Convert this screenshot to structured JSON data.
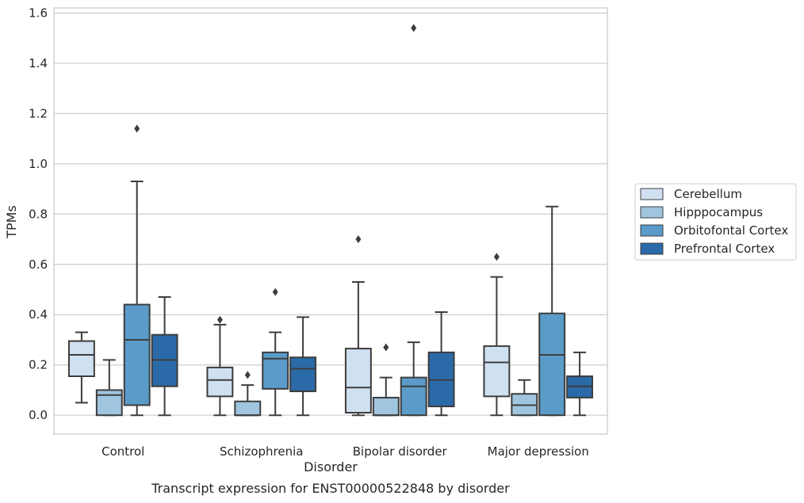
{
  "caption": "Transcript expression for ENST00000522848 by disorder",
  "chart_data": {
    "type": "box",
    "xlabel": "Disorder",
    "ylabel": "TPMs",
    "ylim": [
      -0.075,
      1.62
    ],
    "yticks": [
      0.0,
      0.2,
      0.4,
      0.6,
      0.8,
      1.0,
      1.2,
      1.4,
      1.6
    ],
    "ytick_labels": [
      "0.0",
      "0.2",
      "0.4",
      "0.6",
      "0.8",
      "1.0",
      "1.2",
      "1.4",
      "1.6"
    ],
    "grid": "horizontal",
    "legend_position": "right",
    "categories": [
      "Control",
      "Schizophrenia",
      "Bipolar disorder",
      "Major depression"
    ],
    "series": [
      {
        "name": "Cerebellum",
        "color": "#cfe0f1",
        "boxes": [
          {
            "whisker_low": 0.05,
            "q1": 0.155,
            "median": 0.24,
            "q3": 0.295,
            "whisker_high": 0.33,
            "outliers": []
          },
          {
            "whisker_low": 0.0,
            "q1": 0.075,
            "median": 0.14,
            "q3": 0.19,
            "whisker_high": 0.36,
            "outliers": [
              0.38
            ]
          },
          {
            "whisker_low": 0.0,
            "q1": 0.01,
            "median": 0.11,
            "q3": 0.265,
            "whisker_high": 0.53,
            "outliers": [
              0.7
            ]
          },
          {
            "whisker_low": 0.0,
            "q1": 0.075,
            "median": 0.21,
            "q3": 0.275,
            "whisker_high": 0.55,
            "outliers": [
              0.63
            ]
          }
        ]
      },
      {
        "name": "Hipppocampus",
        "color": "#9fc5df",
        "boxes": [
          {
            "whisker_low": 0.0,
            "q1": 0.0,
            "median": 0.08,
            "q3": 0.1,
            "whisker_high": 0.22,
            "outliers": []
          },
          {
            "whisker_low": 0.0,
            "q1": 0.0,
            "median": 0.0,
            "q3": 0.055,
            "whisker_high": 0.12,
            "outliers": [
              0.16
            ]
          },
          {
            "whisker_low": 0.0,
            "q1": 0.0,
            "median": 0.0,
            "q3": 0.07,
            "whisker_high": 0.15,
            "outliers": [
              0.27
            ]
          },
          {
            "whisker_low": 0.0,
            "q1": 0.0,
            "median": 0.04,
            "q3": 0.085,
            "whisker_high": 0.14,
            "outliers": []
          }
        ]
      },
      {
        "name": "Orbitofontal Cortex",
        "color": "#5a9bc9",
        "boxes": [
          {
            "whisker_low": 0.0,
            "q1": 0.04,
            "median": 0.3,
            "q3": 0.44,
            "whisker_high": 0.93,
            "outliers": [
              1.14
            ]
          },
          {
            "whisker_low": 0.0,
            "q1": 0.105,
            "median": 0.225,
            "q3": 0.25,
            "whisker_high": 0.33,
            "outliers": [
              0.49
            ]
          },
          {
            "whisker_low": 0.0,
            "q1": 0.0,
            "median": 0.115,
            "q3": 0.15,
            "whisker_high": 0.29,
            "outliers": [
              1.54
            ]
          },
          {
            "whisker_low": 0.0,
            "q1": 0.0,
            "median": 0.24,
            "q3": 0.405,
            "whisker_high": 0.83,
            "outliers": []
          }
        ]
      },
      {
        "name": "Prefrontal Cortex",
        "color": "#2b6aa8",
        "boxes": [
          {
            "whisker_low": 0.0,
            "q1": 0.115,
            "median": 0.22,
            "q3": 0.32,
            "whisker_high": 0.47,
            "outliers": []
          },
          {
            "whisker_low": 0.0,
            "q1": 0.095,
            "median": 0.185,
            "q3": 0.23,
            "whisker_high": 0.39,
            "outliers": []
          },
          {
            "whisker_low": 0.0,
            "q1": 0.035,
            "median": 0.14,
            "q3": 0.25,
            "whisker_high": 0.41,
            "outliers": []
          },
          {
            "whisker_low": 0.0,
            "q1": 0.07,
            "median": 0.115,
            "q3": 0.155,
            "whisker_high": 0.25,
            "outliers": []
          }
        ]
      }
    ]
  }
}
